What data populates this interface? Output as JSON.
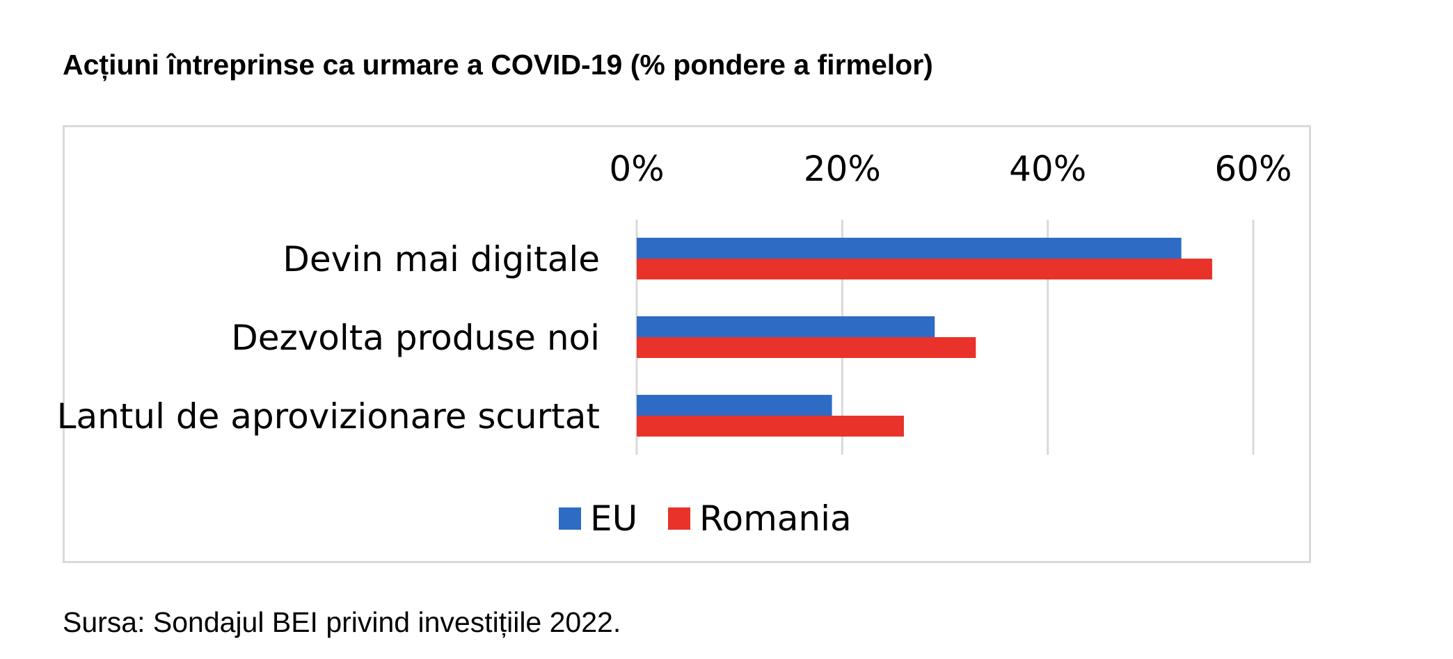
{
  "title": "Acțiuni întreprinse ca urmare a COVID-19 (% pondere a firmelor)",
  "source": "Sursa: Sondajul BEI privind investițiile 2022.",
  "chart_data": {
    "type": "bar",
    "orientation": "horizontal",
    "categories": [
      "Devin mai digitale",
      "Dezvolta produse noi",
      "Lantul de aprovizionare scurtat"
    ],
    "series": [
      {
        "name": "EU",
        "color": "#2e6bc4",
        "values": [
          53,
          29,
          19
        ]
      },
      {
        "name": "Romania",
        "color": "#e8322a",
        "values": [
          56,
          33,
          26
        ]
      }
    ],
    "xlim": [
      0,
      60
    ],
    "ticks": [
      "0%",
      "20%",
      "40%",
      "60%"
    ],
    "tick_values": [
      0,
      20,
      40,
      60
    ],
    "x_axis_position": "top",
    "grid": true,
    "legend": "bottom"
  }
}
